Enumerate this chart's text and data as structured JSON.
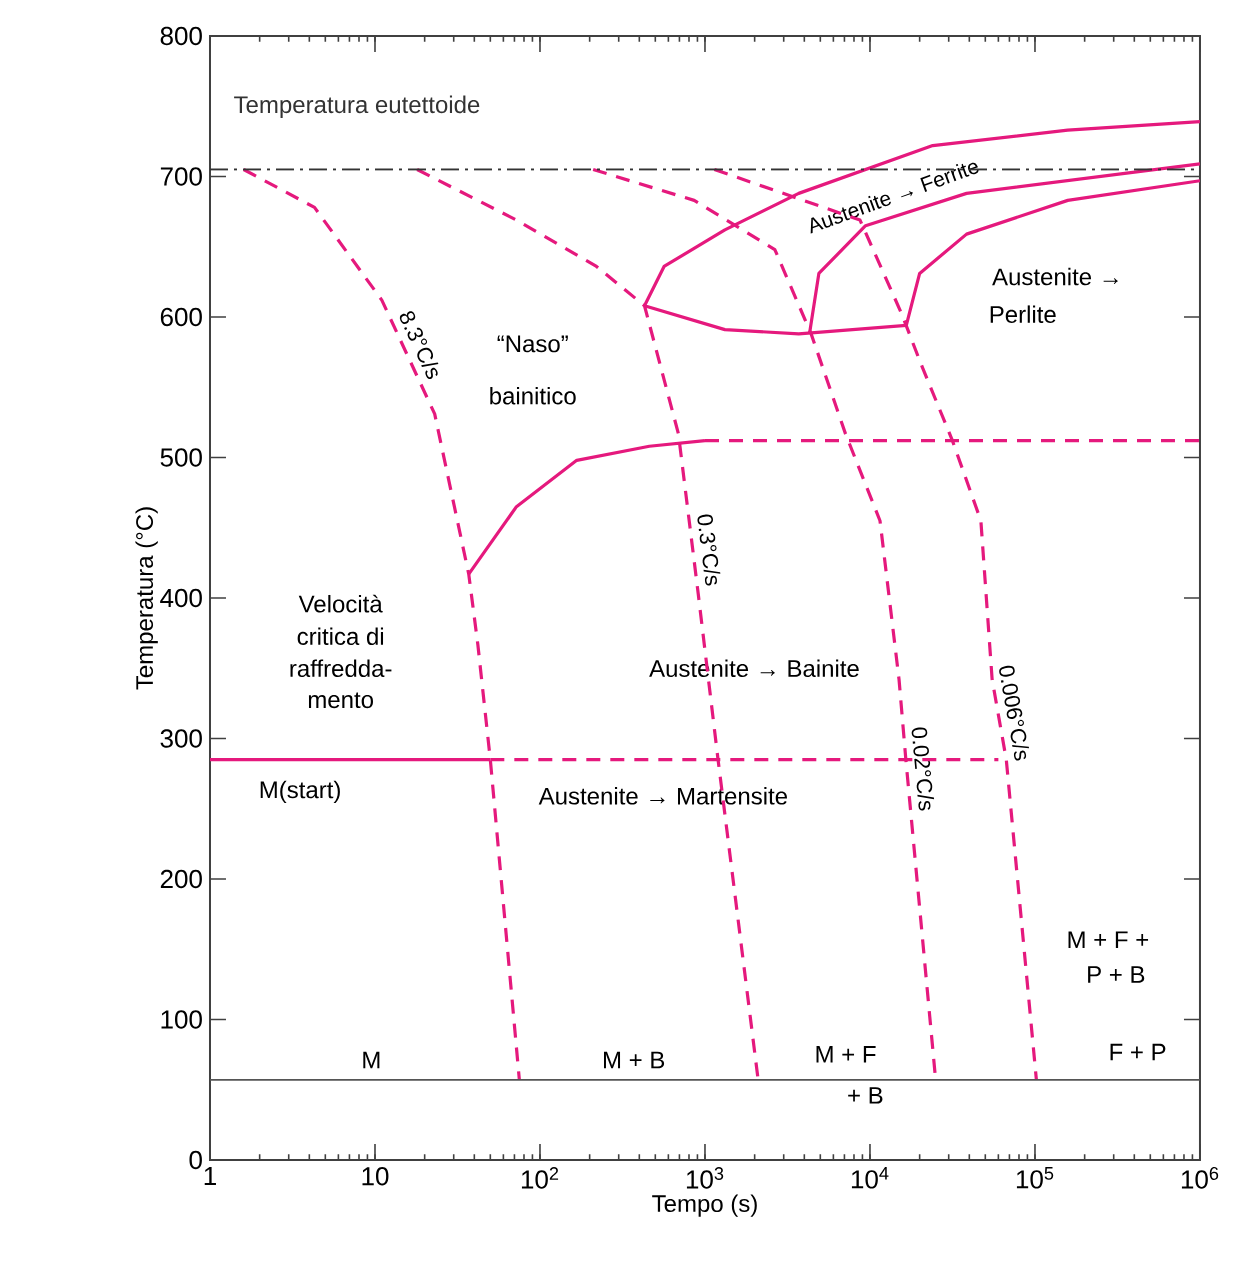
{
  "chart_data": {
    "type": "line",
    "xlabel": "Tempo (s)",
    "ylabel": "Temperatura (°C)",
    "log": "x",
    "xlim": [
      1,
      1000000
    ],
    "ylim": [
      0,
      800
    ],
    "xticks": [
      1,
      10,
      {
        "value": 100,
        "label": "10$^{2}$"
      },
      {
        "value": 1000,
        "label": "10$^{3}$"
      },
      {
        "value": 10000,
        "label": "10$^{4}$"
      },
      {
        "value": 100000,
        "label": "10$^{5}$"
      },
      {
        "value": 1000000,
        "label": "10$^{6}$"
      }
    ],
    "yticks": [
      0,
      100,
      200,
      300,
      400,
      500,
      600,
      700,
      800
    ],
    "marker": "none",
    "series": [
      {
        "name": "8.3°C/s",
        "color": "#e5197d",
        "line_style": "dashed",
        "x": [
          1.6,
          4.3,
          11,
          23,
          37,
          42,
          50,
          75
        ],
        "values": [
          705,
          678,
          612,
          531,
          417,
          367,
          285,
          57
        ]
      },
      {
        "name": "0.3°C/s",
        "color": "#e5197d",
        "line_style": "dashed",
        "x": [
          18,
          72,
          220,
          430,
          690,
          910,
          1200,
          2100
        ],
        "values": [
          705,
          669,
          636,
          608,
          517,
          403,
          285,
          57
        ]
      },
      {
        "name": "0.02°C/s",
        "color": "#e5197d",
        "line_style": "dashed",
        "x": [
          210,
          860,
          2650,
          4400,
          7100,
          11500,
          15000,
          16500,
          25000
        ],
        "values": [
          705,
          683,
          648,
          588,
          517,
          455,
          342,
          285,
          57
        ]
      },
      {
        "name": "0.006°C/s",
        "color": "#e5197d",
        "line_style": "dashed",
        "x": [
          1140,
          8700,
          15600,
          20000,
          31600,
          47000,
          55000,
          67000,
          102000
        ],
        "values": [
          705,
          669,
          602,
          569,
          512,
          455,
          342,
          285,
          57
        ]
      },
      {
        "color": "#e5197d",
        "line_style": "solid",
        "x": [
          430,
          565,
          1320,
          3700,
          24000,
          158000,
          1000000
        ],
        "values": [
          608,
          636,
          662,
          688,
          722,
          733,
          739
        ]
      },
      {
        "color": "#e5197d",
        "line_style": "solid",
        "x": [
          430,
          1320,
          3700,
          16600
        ],
        "values": [
          608,
          591,
          588,
          594
        ]
      },
      {
        "color": "#e5197d",
        "line_style": "solid",
        "x": [
          16600,
          20000,
          38500,
          158000,
          1000000
        ],
        "values": [
          594,
          631,
          659,
          683,
          697
        ]
      },
      {
        "color": "#e5197d",
        "line_style": "solid",
        "x": [
          4300,
          4900,
          9400,
          38500,
          1000000
        ],
        "values": [
          588,
          631,
          665,
          688,
          709
        ]
      },
      {
        "color": "#e5197d",
        "line_style": "solid",
        "x": [
          37,
          72,
          167,
          460,
          1000
        ],
        "values": [
          417,
          465,
          498,
          508,
          512
        ]
      },
      {
        "color": "#e5197d",
        "line_style": "dashed",
        "x": [
          1000,
          1000000
        ],
        "values": [
          512,
          512
        ]
      },
      {
        "color": "#e5197d",
        "line_style": "solid",
        "x": [
          1,
          50
        ],
        "values": [
          285,
          285
        ]
      },
      {
        "color": "#e5197d",
        "line_style": "dashed",
        "x": [
          50,
          60000
        ],
        "values": [
          285,
          285
        ]
      }
    ],
    "ref_lines": [
      {
        "axis": "y",
        "value": 705,
        "label": "Temperatura eutettoide",
        "color": "#333333",
        "line_style": "dashdot"
      },
      {
        "axis": "y",
        "value": 57,
        "color": "#555555",
        "line_style": "solid"
      }
    ],
    "annotations": [
      "“Naso”",
      "bainitico",
      "Austenite → Ferrite",
      "Austenite →",
      "Perlite",
      "Velocità",
      "critica di",
      "raffredda-",
      "mento",
      "Austenite → Bainite",
      "M(start)",
      "Austenite → Martensite",
      "M",
      "M + B",
      "M + F",
      "+ B",
      "M + F +",
      "P + B",
      "F + P"
    ]
  }
}
